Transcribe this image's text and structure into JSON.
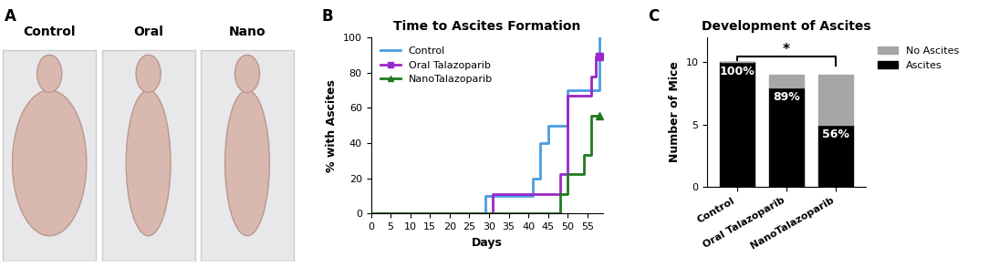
{
  "chart_data": [
    {
      "type": "image",
      "panel_label": "A",
      "categories": [
        "Control",
        "Oral",
        "Nano"
      ]
    },
    {
      "type": "line",
      "panel_label": "B",
      "title": "Time to Ascites Formation",
      "x_label": "Days",
      "y_label": "% with Ascites",
      "xlim": [
        0,
        59
      ],
      "xticks": [
        0,
        5,
        10,
        15,
        20,
        25,
        30,
        35,
        40,
        45,
        50,
        55
      ],
      "ylim": [
        0,
        100
      ],
      "yticks": [
        0,
        20,
        40,
        60,
        80,
        100
      ],
      "legend": "upper left",
      "series": [
        {
          "name": "Control",
          "color": "#4a9de0",
          "line_style": "steps",
          "x": [
            0,
            29,
            41,
            43,
            45,
            50,
            58
          ],
          "values": [
            0,
            10,
            20,
            40,
            50,
            70,
            100
          ]
        },
        {
          "name": "Oral Talazoparib",
          "color": "#9b27c9",
          "line_style": "steps",
          "marker": "square",
          "x": [
            0,
            31,
            48,
            50,
            56,
            57,
            58
          ],
          "values": [
            0,
            11.1,
            22.2,
            66.7,
            77.8,
            88.9,
            88.9
          ]
        },
        {
          "name": "NanoTalazoparib",
          "color": "#1f7a1f",
          "line_style": "steps",
          "marker": "triangle",
          "x": [
            0,
            48,
            50,
            54,
            56,
            58
          ],
          "values": [
            0,
            11.1,
            22.2,
            33.3,
            55.6,
            55.6
          ]
        }
      ]
    },
    {
      "type": "bar",
      "panel_label": "C",
      "title": "Development of Ascites",
      "stacked": true,
      "y_label": "Number of Mice",
      "categories": [
        "Control",
        "Oral Talazoparib",
        "NanoTalazoparib"
      ],
      "ylim": [
        0,
        12
      ],
      "yticks": [
        0,
        5,
        10
      ],
      "legend": "right",
      "series": [
        {
          "name": "Ascites",
          "color": "#000000",
          "values": [
            10,
            8,
            5
          ]
        },
        {
          "name": "No Ascites",
          "color": "#a6a6a6",
          "values": [
            0,
            1,
            4
          ]
        }
      ],
      "annotations": [
        {
          "category": "Control",
          "text": "100%"
        },
        {
          "category": "Oral Talazoparib",
          "text": "89%"
        },
        {
          "category": "NanoTalazoparib",
          "text": "56%"
        },
        {
          "from": "Control",
          "to": "NanoTalazoparib",
          "text": "*"
        }
      ]
    }
  ]
}
